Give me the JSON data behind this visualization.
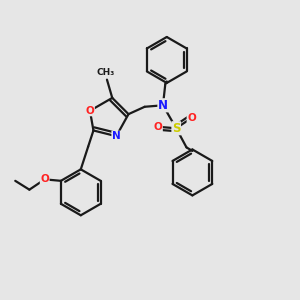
{
  "background_color": "#e6e6e6",
  "bond_color": "#1a1a1a",
  "bond_width": 1.6,
  "atom_colors": {
    "N": "#1a1aff",
    "O": "#ff2222",
    "S": "#cccc00",
    "C": "#1a1a1a"
  },
  "figsize": [
    3.0,
    3.0
  ],
  "dpi": 100
}
